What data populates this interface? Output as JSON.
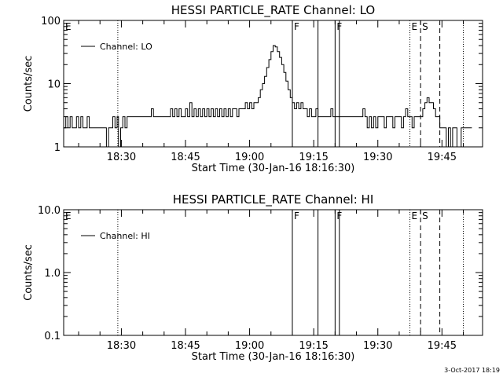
{
  "footer": {
    "timestamp": "3-Oct-2017 18:19"
  },
  "chart_data": [
    {
      "type": "line",
      "title": "HESSI PARTICLE_RATE Channel: LO",
      "xlabel": "Start Time (30-Jan-16 18:16:30)",
      "ylabel": "Counts/sec",
      "yscale": "log",
      "ylim": [
        1,
        100
      ],
      "xlim": [
        "18:16:30",
        "19:54:30"
      ],
      "x_ticks": [
        "18:30",
        "18:45",
        "19:00",
        "19:15",
        "19:30",
        "19:45"
      ],
      "y_ticks": [
        "1",
        "10",
        "100"
      ],
      "legend": {
        "entries": [
          "Channel: LO"
        ],
        "placement": "top-left"
      },
      "markers": [
        {
          "label": "E",
          "time": "18:16:30",
          "style": "none"
        },
        {
          "label": "",
          "time": "18:29:10",
          "style": "dotted"
        },
        {
          "label": "F",
          "time": "19:10:00",
          "style": "solid"
        },
        {
          "label": "",
          "time": "19:16:00",
          "style": "solid"
        },
        {
          "label": "F",
          "time": "19:20:00",
          "style": "solid"
        },
        {
          "label": "",
          "time": "19:21:00",
          "style": "solid"
        },
        {
          "label": "E",
          "time": "19:37:30",
          "style": "dotted"
        },
        {
          "label": "S",
          "time": "19:40:00",
          "style": "dashed"
        },
        {
          "label": "",
          "time": "19:44:30",
          "style": "dashed"
        },
        {
          "label": "",
          "time": "19:50:00",
          "style": "dotted"
        }
      ],
      "series": [
        {
          "name": "Channel: LO",
          "points": [
            [
              "18:16:30",
              2
            ],
            [
              "18:17:00",
              3
            ],
            [
              "18:17:30",
              2
            ],
            [
              "18:18:00",
              3
            ],
            [
              "18:18:30",
              2
            ],
            [
              "18:19:00",
              2
            ],
            [
              "18:19:30",
              3
            ],
            [
              "18:20:00",
              2
            ],
            [
              "18:20:30",
              3
            ],
            [
              "18:21:00",
              2
            ],
            [
              "18:21:30",
              2
            ],
            [
              "18:22:00",
              3
            ],
            [
              "18:22:30",
              2
            ],
            [
              "18:23:00",
              2
            ],
            [
              "18:24:00",
              2
            ],
            [
              "18:25:00",
              2
            ],
            [
              "18:26:00",
              2
            ],
            [
              "18:26:30",
              1
            ],
            [
              "18:27:00",
              2
            ],
            [
              "18:27:30",
              2
            ],
            [
              "18:28:00",
              3
            ],
            [
              "18:28:30",
              2
            ],
            [
              "18:29:00",
              3
            ],
            [
              "18:29:20",
              1
            ],
            [
              "18:29:50",
              2
            ],
            [
              "18:30:20",
              3
            ],
            [
              "18:30:50",
              2
            ],
            [
              "18:31:20",
              3
            ],
            [
              "18:32:00",
              3
            ],
            [
              "18:33:00",
              3
            ],
            [
              "18:34:00",
              3
            ],
            [
              "18:35:00",
              3
            ],
            [
              "18:36:00",
              3
            ],
            [
              "18:37:00",
              4
            ],
            [
              "18:37:30",
              3
            ],
            [
              "18:38:00",
              3
            ],
            [
              "18:39:00",
              3
            ],
            [
              "18:40:00",
              3
            ],
            [
              "18:41:00",
              3
            ],
            [
              "18:41:30",
              4
            ],
            [
              "18:42:00",
              3
            ],
            [
              "18:42:30",
              4
            ],
            [
              "18:43:00",
              3
            ],
            [
              "18:43:30",
              4
            ],
            [
              "18:44:00",
              3
            ],
            [
              "18:44:30",
              3
            ],
            [
              "18:45:00",
              4
            ],
            [
              "18:45:30",
              3
            ],
            [
              "18:46:00",
              5
            ],
            [
              "18:46:30",
              3
            ],
            [
              "18:47:00",
              4
            ],
            [
              "18:47:30",
              3
            ],
            [
              "18:48:00",
              4
            ],
            [
              "18:48:30",
              3
            ],
            [
              "18:49:00",
              4
            ],
            [
              "18:49:30",
              3
            ],
            [
              "18:50:00",
              4
            ],
            [
              "18:50:30",
              3
            ],
            [
              "18:51:00",
              4
            ],
            [
              "18:51:30",
              3
            ],
            [
              "18:52:00",
              4
            ],
            [
              "18:52:30",
              3
            ],
            [
              "18:53:00",
              4
            ],
            [
              "18:53:30",
              3
            ],
            [
              "18:54:00",
              4
            ],
            [
              "18:54:30",
              3
            ],
            [
              "18:55:00",
              4
            ],
            [
              "18:55:30",
              3
            ],
            [
              "18:56:00",
              4
            ],
            [
              "18:56:30",
              4
            ],
            [
              "18:57:00",
              3
            ],
            [
              "18:57:30",
              4
            ],
            [
              "18:58:00",
              4
            ],
            [
              "18:58:30",
              4
            ],
            [
              "18:59:00",
              5
            ],
            [
              "18:59:30",
              4
            ],
            [
              "19:00:00",
              5
            ],
            [
              "19:00:30",
              4
            ],
            [
              "19:01:00",
              5
            ],
            [
              "19:01:30",
              5
            ],
            [
              "19:02:00",
              6
            ],
            [
              "19:02:30",
              8
            ],
            [
              "19:03:00",
              10
            ],
            [
              "19:03:30",
              13
            ],
            [
              "19:04:00",
              18
            ],
            [
              "19:04:30",
              24
            ],
            [
              "19:05:00",
              32
            ],
            [
              "19:05:30",
              40
            ],
            [
              "19:06:00",
              38
            ],
            [
              "19:06:30",
              32
            ],
            [
              "19:07:00",
              26
            ],
            [
              "19:07:30",
              20
            ],
            [
              "19:08:00",
              15
            ],
            [
              "19:08:30",
              11
            ],
            [
              "19:09:00",
              8
            ],
            [
              "19:09:30",
              6
            ],
            [
              "19:10:00",
              5
            ],
            [
              "19:10:30",
              4
            ],
            [
              "19:11:00",
              5
            ],
            [
              "19:11:30",
              4
            ],
            [
              "19:12:00",
              5
            ],
            [
              "19:12:30",
              4
            ],
            [
              "19:13:00",
              4
            ],
            [
              "19:13:30",
              3
            ],
            [
              "19:14:00",
              4
            ],
            [
              "19:14:30",
              3
            ],
            [
              "19:15:00",
              3
            ],
            [
              "19:15:30",
              4
            ],
            [
              "19:16:00",
              3
            ],
            [
              "19:17:00",
              3
            ],
            [
              "19:18:00",
              3
            ],
            [
              "19:19:00",
              4
            ],
            [
              "19:19:30",
              3
            ],
            [
              "19:20:00",
              3
            ],
            [
              "19:21:00",
              3
            ],
            [
              "19:22:00",
              3
            ],
            [
              "19:23:00",
              3
            ],
            [
              "19:24:00",
              3
            ],
            [
              "19:25:00",
              3
            ],
            [
              "19:26:00",
              3
            ],
            [
              "19:26:30",
              4
            ],
            [
              "19:27:00",
              3
            ],
            [
              "19:27:30",
              2
            ],
            [
              "19:28:00",
              3
            ],
            [
              "19:28:30",
              2
            ],
            [
              "19:29:00",
              3
            ],
            [
              "19:29:30",
              2
            ],
            [
              "19:30:00",
              3
            ],
            [
              "19:30:30",
              3
            ],
            [
              "19:31:00",
              3
            ],
            [
              "19:31:30",
              2
            ],
            [
              "19:32:00",
              3
            ],
            [
              "19:32:30",
              3
            ],
            [
              "19:33:00",
              3
            ],
            [
              "19:33:30",
              2
            ],
            [
              "19:34:00",
              3
            ],
            [
              "19:34:30",
              3
            ],
            [
              "19:35:00",
              3
            ],
            [
              "19:35:30",
              2
            ],
            [
              "19:36:00",
              3
            ],
            [
              "19:36:30",
              4
            ],
            [
              "19:37:00",
              3
            ],
            [
              "19:37:30",
              3
            ],
            [
              "19:38:00",
              2
            ],
            [
              "19:38:30",
              3
            ],
            [
              "19:39:00",
              3
            ],
            [
              "19:40:00",
              3
            ],
            [
              "19:40:30",
              4
            ],
            [
              "19:41:00",
              5
            ],
            [
              "19:41:30",
              6
            ],
            [
              "19:42:00",
              5
            ],
            [
              "19:42:30",
              5
            ],
            [
              "19:43:00",
              4
            ],
            [
              "19:43:30",
              3
            ],
            [
              "19:44:00",
              3
            ],
            [
              "19:44:30",
              2
            ],
            [
              "19:45:00",
              2
            ],
            [
              "19:45:30",
              2
            ],
            [
              "19:46:00",
              1
            ],
            [
              "19:46:30",
              2
            ],
            [
              "19:47:00",
              1
            ],
            [
              "19:47:30",
              2
            ],
            [
              "19:48:00",
              2
            ],
            [
              "19:48:30",
              1
            ],
            [
              "19:49:00",
              1
            ],
            [
              "19:49:30",
              2
            ],
            [
              "19:50:00",
              2
            ],
            [
              "19:52:00",
              2
            ]
          ]
        }
      ]
    },
    {
      "type": "line",
      "title": "HESSI PARTICLE_RATE Channel: HI",
      "xlabel": "Start Time (30-Jan-16 18:16:30)",
      "ylabel": "Counts/sec",
      "yscale": "log",
      "ylim": [
        0.1,
        10
      ],
      "xlim": [
        "18:16:30",
        "19:54:30"
      ],
      "x_ticks": [
        "18:30",
        "18:45",
        "19:00",
        "19:15",
        "19:30",
        "19:45"
      ],
      "y_ticks": [
        "0.1",
        "1.0",
        "10.0"
      ],
      "legend": {
        "entries": [
          "Channel: HI"
        ],
        "placement": "top-left"
      },
      "markers": [
        {
          "label": "E",
          "time": "18:16:30",
          "style": "none"
        },
        {
          "label": "",
          "time": "18:29:10",
          "style": "dotted"
        },
        {
          "label": "F",
          "time": "19:10:00",
          "style": "solid"
        },
        {
          "label": "",
          "time": "19:16:00",
          "style": "solid"
        },
        {
          "label": "F",
          "time": "19:20:00",
          "style": "solid"
        },
        {
          "label": "",
          "time": "19:21:00",
          "style": "solid"
        },
        {
          "label": "E",
          "time": "19:37:30",
          "style": "dotted"
        },
        {
          "label": "S",
          "time": "19:40:00",
          "style": "dashed"
        },
        {
          "label": "",
          "time": "19:44:30",
          "style": "dashed"
        },
        {
          "label": "",
          "time": "19:50:00",
          "style": "dotted"
        }
      ],
      "series": [
        {
          "name": "Channel: HI",
          "points": []
        }
      ]
    }
  ]
}
